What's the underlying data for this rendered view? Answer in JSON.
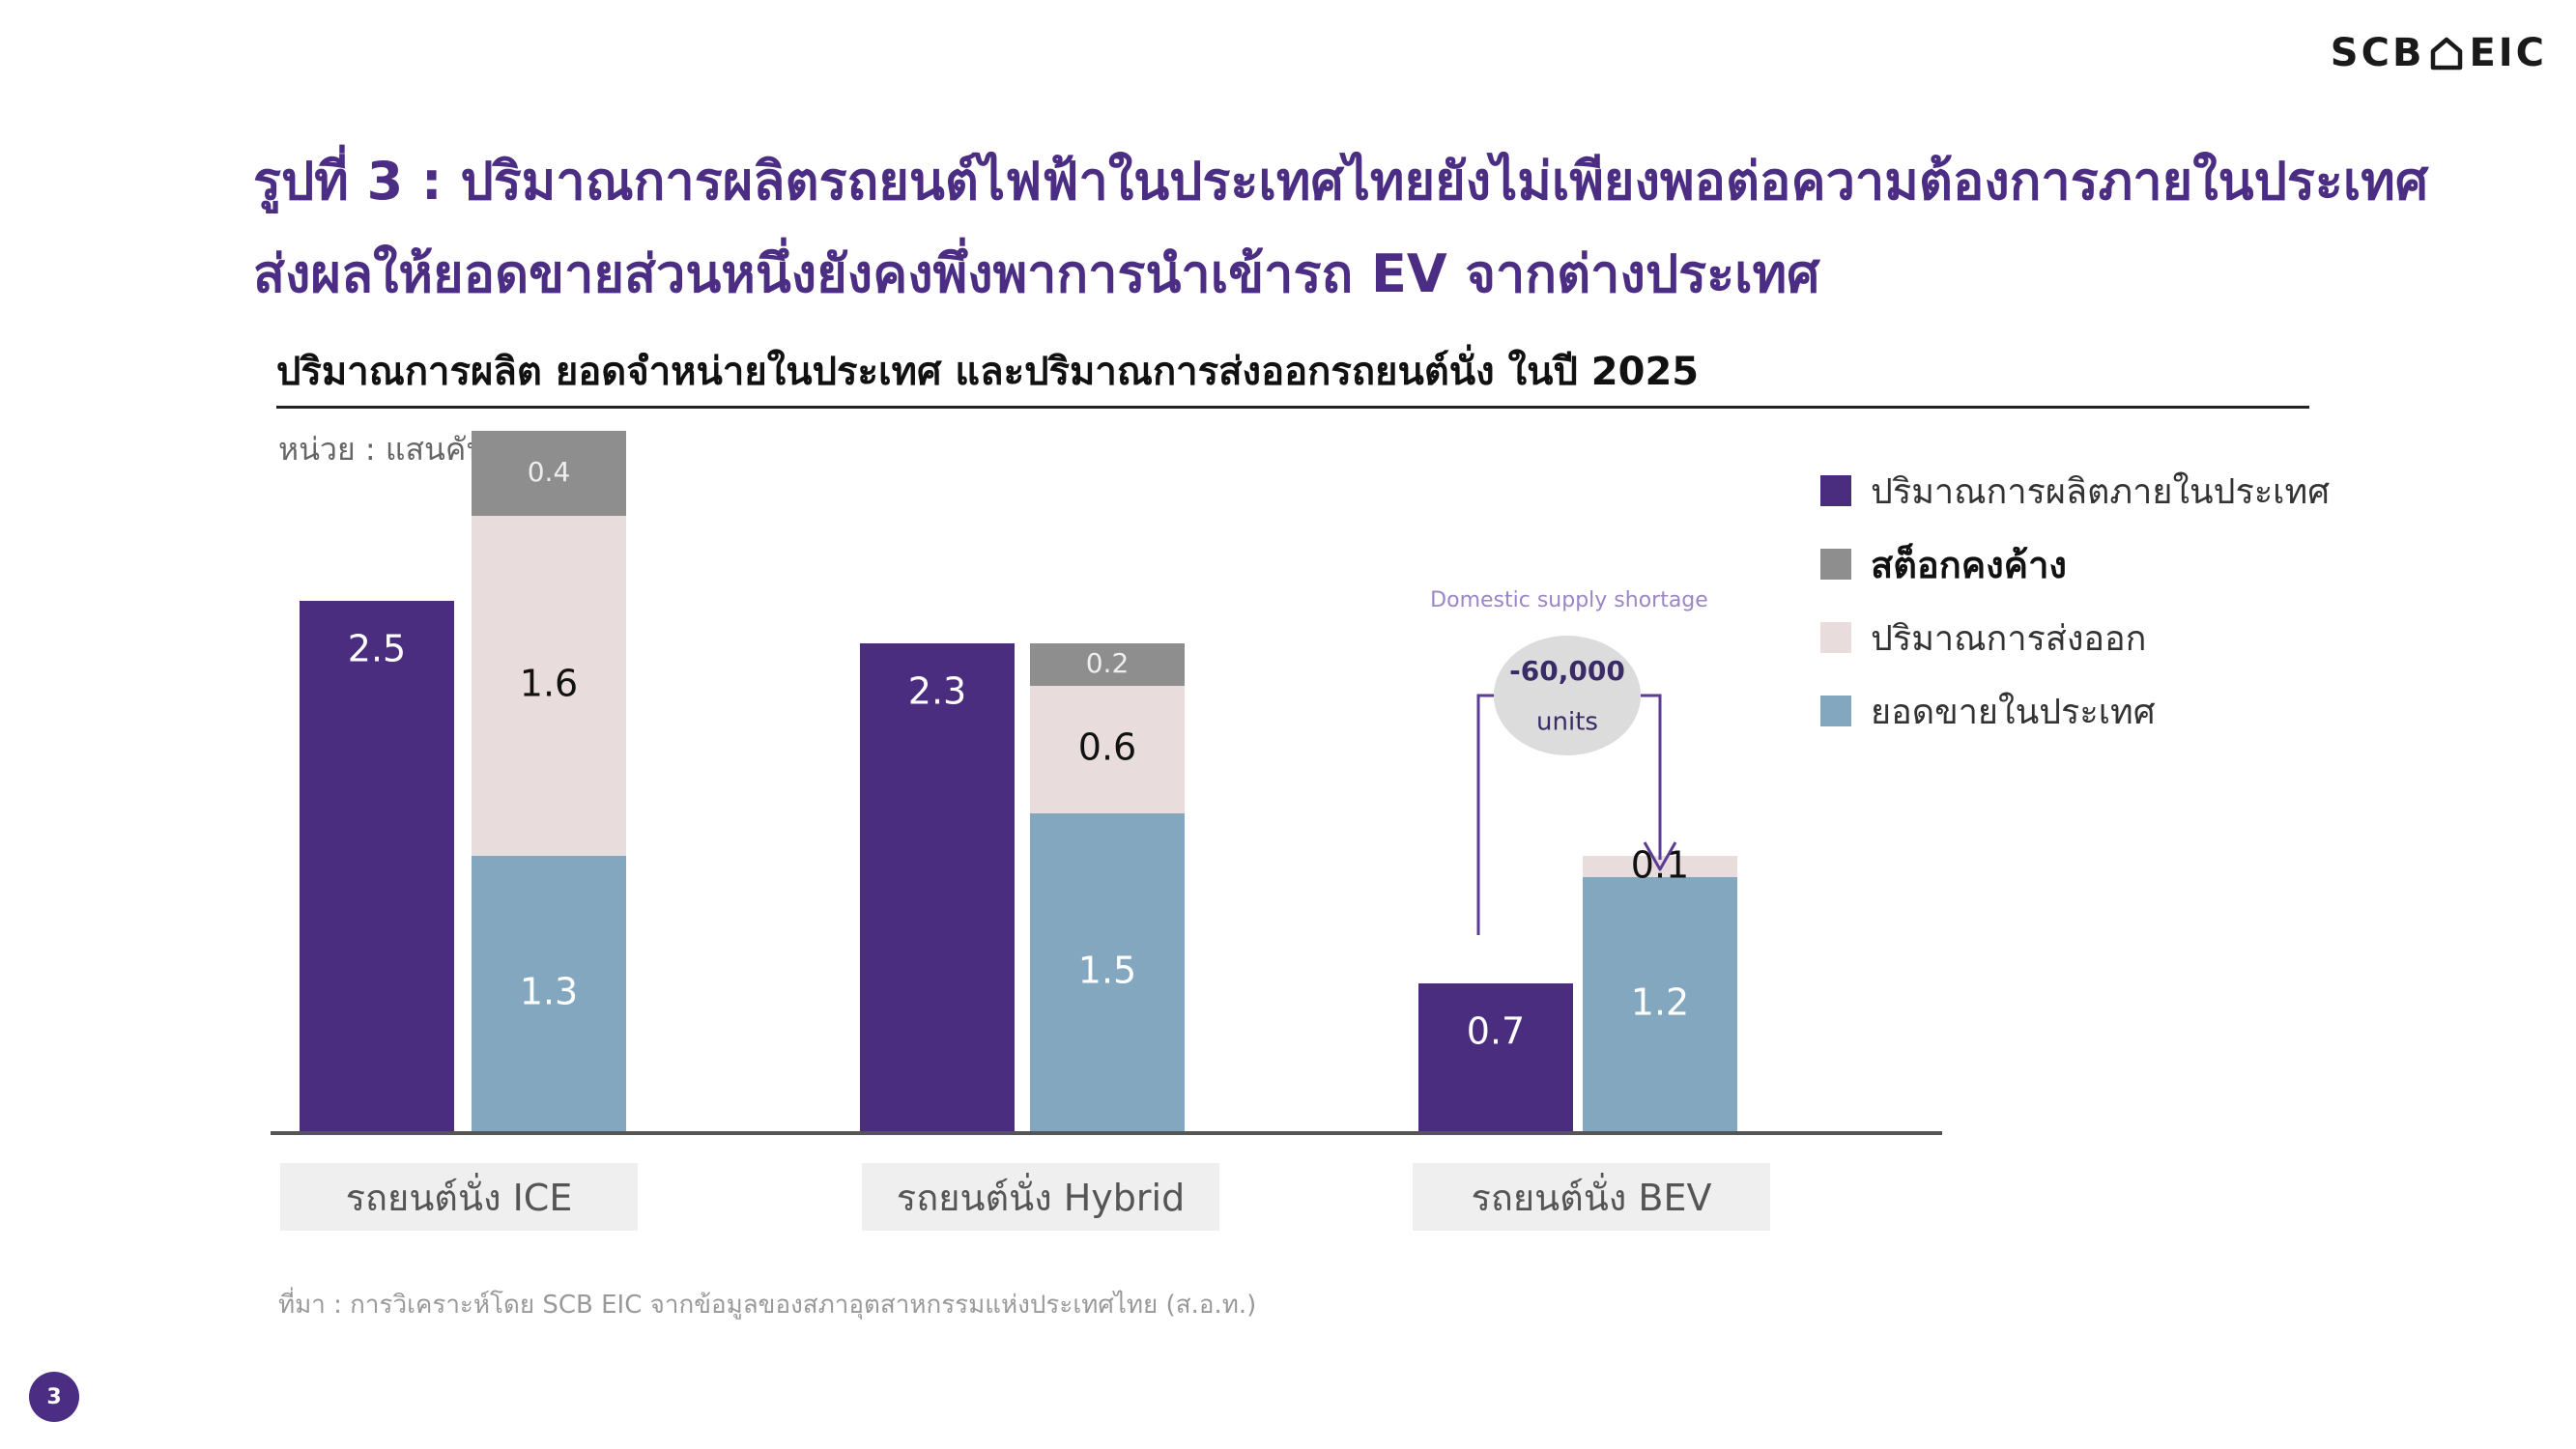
{
  "brand": {
    "logo_text_left": "SCB",
    "logo_text_right": "EIC"
  },
  "figure_title": {
    "line1": "รูปที่ 3 : ปริมาณการผลิตรถยนต์ไฟฟ้าในประเทศไทยยังไม่เพียงพอต่อความต้องการภายในประเทศ",
    "line2": "ส่งผลให้ยอดขายส่วนหนึ่งยังคงพึ่งพาการนำเข้ารถ EV จากต่างประเทศ"
  },
  "page_number": "3",
  "source_note": "ที่มา : การวิเคราะห์โดย SCB EIC จากข้อมูลของสภาอุตสาหกรรมแห่งประเทศไทย (ส.อ.ท.)",
  "annotation": {
    "heading": "Domestic supply shortage",
    "line1": "-60,000",
    "line2": "units"
  },
  "chart_data": {
    "type": "bar",
    "title": "ปริมาณการผลิต ยอดจำหน่ายในประเทศ และปริมาณการส่งออกรถยนต์นั่ง ในปี 2025",
    "unit_label": "หน่วย : แสนคัน",
    "categories": [
      "รถยนต์นั่ง ICE",
      "รถยนต์นั่ง Hybrid",
      "รถยนต์นั่ง BEV"
    ],
    "production": {
      "name": "ปริมาณการผลิตภายในประเทศ",
      "values": [
        2.5,
        2.3,
        0.7
      ]
    },
    "stacked_series": [
      {
        "name": "ยอดขายในประเทศ",
        "values": [
          1.3,
          1.5,
          1.2
        ]
      },
      {
        "name": "ปริมาณการส่งออก",
        "values": [
          1.6,
          0.6,
          0.1
        ]
      },
      {
        "name": "สต็อกคงค้าง",
        "values": [
          0.4,
          0.2,
          null
        ]
      }
    ],
    "legend_order": [
      "ปริมาณการผลิตภายในประเทศ",
      "สต็อกคงค้าง",
      "ปริมาณการส่งออก",
      "ยอดขายในประเทศ"
    ],
    "colors": {
      "ปริมาณการผลิตภายในประเทศ": "#4a2d7f",
      "สต็อกคงค้าง": "#8e8e8e",
      "ปริมาณการส่งออก": "#e9dcdd",
      "ยอดขายในประเทศ": "#82a7bf"
    },
    "legend_position": "right",
    "grid": false
  }
}
